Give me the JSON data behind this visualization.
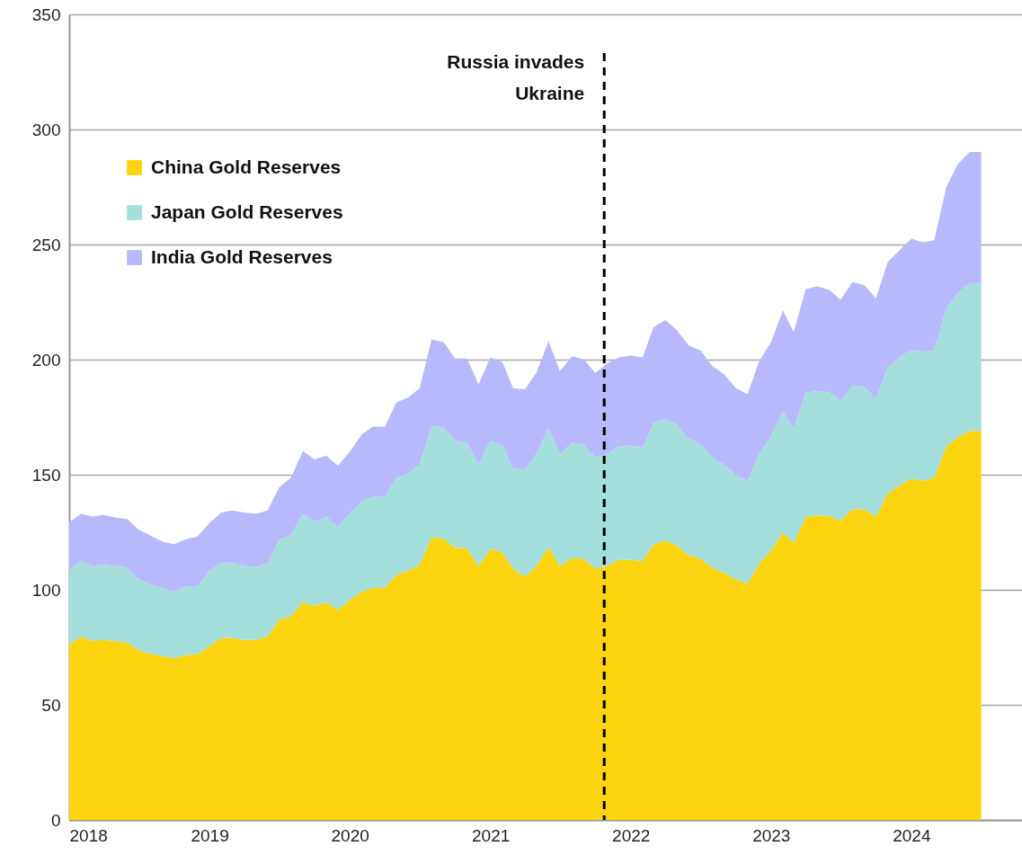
{
  "chart_data": {
    "type": "area",
    "stacked": true,
    "x": [
      "2018-01",
      "2018-02",
      "2018-03",
      "2018-04",
      "2018-05",
      "2018-06",
      "2018-07",
      "2018-08",
      "2018-09",
      "2018-10",
      "2018-11",
      "2018-12",
      "2019-01",
      "2019-02",
      "2019-03",
      "2019-04",
      "2019-05",
      "2019-06",
      "2019-07",
      "2019-08",
      "2019-09",
      "2019-10",
      "2019-11",
      "2019-12",
      "2020-01",
      "2020-02",
      "2020-03",
      "2020-04",
      "2020-05",
      "2020-06",
      "2020-07",
      "2020-08",
      "2020-09",
      "2020-10",
      "2020-11",
      "2020-12",
      "2021-01",
      "2021-02",
      "2021-03",
      "2021-04",
      "2021-05",
      "2021-06",
      "2021-07",
      "2021-08",
      "2021-09",
      "2021-10",
      "2021-11",
      "2021-12",
      "2022-01",
      "2022-02",
      "2022-03",
      "2022-04",
      "2022-05",
      "2022-06",
      "2022-07",
      "2022-08",
      "2022-09",
      "2022-10",
      "2022-11",
      "2022-12",
      "2023-01",
      "2023-02",
      "2023-03",
      "2023-04",
      "2023-05",
      "2023-06",
      "2023-07",
      "2023-08",
      "2023-09",
      "2023-10",
      "2023-11",
      "2023-12",
      "2024-01",
      "2024-02",
      "2024-03",
      "2024-04",
      "2024-05",
      "2024-06",
      "2024-07"
    ],
    "series": [
      {
        "name": "China Gold Reserves",
        "color": "#fcd40f",
        "values": [
          76.4,
          79.6,
          77.9,
          78.2,
          77.7,
          77.0,
          73.8,
          72.1,
          71.2,
          70.3,
          71.6,
          72.1,
          75.6,
          79.1,
          79.1,
          78.2,
          78.2,
          79.6,
          86.9,
          88.6,
          94.7,
          93.0,
          94.4,
          91.2,
          95.6,
          99.1,
          100.8,
          100.8,
          106.4,
          108.2,
          110.8,
          122.9,
          122.2,
          118.3,
          118.1,
          110.4,
          117.9,
          116.2,
          109.2,
          105.7,
          110.4,
          118.6,
          110.2,
          113.9,
          113.4,
          109.2,
          110.4,
          113.0,
          113.0,
          112.5,
          119.6,
          121.4,
          119.1,
          115.0,
          113.6,
          109.7,
          107.3,
          104.6,
          102.6,
          111.3,
          117.0,
          124.8,
          120.2,
          131.5,
          132.3,
          132.0,
          130.0,
          135.0,
          135.0,
          131.8,
          142.0,
          145.2,
          148.2,
          147.4,
          148.7,
          162.3,
          166.3,
          169.0,
          169.0
        ]
      },
      {
        "name": "Japan Gold Reserves",
        "color": "#a5dfdc",
        "values": [
          32.3,
          33.1,
          32.5,
          32.6,
          32.7,
          32.5,
          30.8,
          30.1,
          29.6,
          29.1,
          29.9,
          29.4,
          32.6,
          32.7,
          32.7,
          32.2,
          31.7,
          32.0,
          34.8,
          35.2,
          38.3,
          36.6,
          37.2,
          36.3,
          37.4,
          39.2,
          39.6,
          39.6,
          42.3,
          42.3,
          43.7,
          48.5,
          48.3,
          46.5,
          46.0,
          44.1,
          46.9,
          46.5,
          43.4,
          46.5,
          48.8,
          51.5,
          48.6,
          50.1,
          49.8,
          48.2,
          48.8,
          49.3,
          49.7,
          49.3,
          52.7,
          52.9,
          52.8,
          50.6,
          49.9,
          47.9,
          47.0,
          45.4,
          44.9,
          47.9,
          49.7,
          52.7,
          50.0,
          54.2,
          53.9,
          53.7,
          52.2,
          53.8,
          53.0,
          51.2,
          54.6,
          55.8,
          56.1,
          55.9,
          55.6,
          60.1,
          62.6,
          64.3,
          64.3
        ]
      },
      {
        "name": "India Gold Reserves",
        "color": "#b8b8fc",
        "values": [
          20.5,
          20.3,
          21.4,
          21.7,
          20.9,
          21.3,
          21.5,
          21.3,
          20.1,
          20.3,
          20.6,
          21.6,
          20.8,
          21.8,
          22.6,
          23.2,
          23.1,
          22.8,
          22.7,
          24.9,
          27.4,
          27.0,
          26.7,
          26.4,
          27.0,
          29.1,
          30.5,
          30.5,
          32.6,
          33.1,
          33.1,
          37.4,
          37.1,
          35.7,
          36.4,
          34.8,
          36.2,
          36.2,
          35.0,
          34.9,
          35.2,
          37.9,
          36.1,
          37.5,
          36.9,
          36.7,
          39.2,
          38.7,
          39.1,
          39.2,
          41.7,
          42.9,
          40.9,
          40.6,
          40.5,
          39.6,
          39.4,
          37.7,
          37.5,
          40.1,
          40.9,
          43.9,
          41.7,
          44.9,
          45.6,
          44.7,
          43.8,
          44.9,
          44.3,
          43.7,
          45.9,
          46.5,
          48.2,
          47.7,
          47.7,
          52.6,
          56.1,
          56.9,
          56.9
        ]
      }
    ],
    "xlim": [
      "2018-01-01",
      "2024-10-15"
    ],
    "xticks": [
      "2018",
      "2019",
      "2020",
      "2021",
      "2022",
      "2023",
      "2024"
    ],
    "ylim": [
      0,
      350
    ],
    "yticks": [
      0,
      50,
      100,
      150,
      200,
      250,
      300,
      350
    ],
    "grid": "y",
    "legend": "top left",
    "ref_lines": [
      {
        "axis": "x",
        "value": "2021-10-24",
        "label": "Russia invades\nUkraine",
        "line_style": "dashed",
        "color": "#000000"
      }
    ]
  }
}
